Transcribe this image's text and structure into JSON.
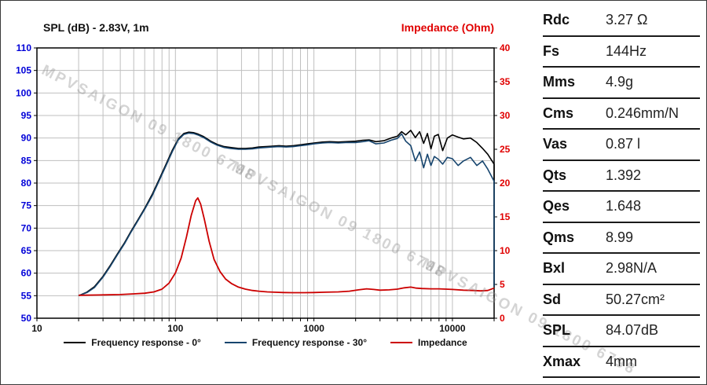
{
  "watermark": {
    "text": "MPVSAIGON 09 1800 6798"
  },
  "specs": {
    "rows": [
      {
        "label": "Rdc",
        "value": "3.27 Ω"
      },
      {
        "label": "Fs",
        "value": "144Hz"
      },
      {
        "label": "Mms",
        "value": "4.9g"
      },
      {
        "label": "Cms",
        "value": "0.246mm/N"
      },
      {
        "label": "Vas",
        "value": "0.87 l"
      },
      {
        "label": "Qts",
        "value": "1.392"
      },
      {
        "label": "Qes",
        "value": "1.648"
      },
      {
        "label": "Qms",
        "value": "8.99"
      },
      {
        "label": "Bxl",
        "value": "2.98N/A"
      },
      {
        "label": "Sd",
        "value": "50.27cm²"
      },
      {
        "label": "SPL",
        "value": "84.07dB"
      },
      {
        "label": "Xmax",
        "value": "4mm"
      }
    ]
  },
  "chart_data": {
    "type": "line",
    "title_left": "SPL (dB) - 2.83V, 1m",
    "title_right": "Impedance (Ohm)",
    "x_axis": {
      "scale": "log",
      "min": 10,
      "max": 20000,
      "tick_labels": [
        10,
        100,
        1000,
        10000
      ]
    },
    "y_left": {
      "label": "SPL (dB)",
      "min": 50,
      "max": 110,
      "step": 5,
      "color": "#0000d8"
    },
    "y_right": {
      "label": "Impedance (Ohm)",
      "min": 0,
      "max": 40,
      "step": 5,
      "color": "#e00000"
    },
    "grid": true,
    "legend_position": "bottom",
    "series": [
      {
        "name": "Frequency response - 0°",
        "axis": "left",
        "color": "#000000",
        "points": [
          [
            20,
            55
          ],
          [
            23,
            55.8
          ],
          [
            26,
            57
          ],
          [
            30,
            59.3
          ],
          [
            34,
            61.8
          ],
          [
            38,
            64.2
          ],
          [
            43,
            66.8
          ],
          [
            48,
            69.4
          ],
          [
            54,
            72
          ],
          [
            60,
            74.4
          ],
          [
            68,
            77.5
          ],
          [
            76,
            80.7
          ],
          [
            85,
            84
          ],
          [
            95,
            87.3
          ],
          [
            105,
            89.8
          ],
          [
            115,
            91
          ],
          [
            125,
            91.3
          ],
          [
            135,
            91.2
          ],
          [
            145,
            90.9
          ],
          [
            160,
            90.3
          ],
          [
            180,
            89.3
          ],
          [
            200,
            88.6
          ],
          [
            225,
            88.1
          ],
          [
            250,
            87.9
          ],
          [
            285,
            87.7
          ],
          [
            320,
            87.7
          ],
          [
            360,
            87.8
          ],
          [
            400,
            88
          ],
          [
            450,
            88.1
          ],
          [
            500,
            88.2
          ],
          [
            560,
            88.3
          ],
          [
            630,
            88.2
          ],
          [
            710,
            88.3
          ],
          [
            800,
            88.5
          ],
          [
            900,
            88.7
          ],
          [
            1000,
            88.9
          ],
          [
            1150,
            89.1
          ],
          [
            1300,
            89.2
          ],
          [
            1500,
            89.1
          ],
          [
            1700,
            89.2
          ],
          [
            2000,
            89.3
          ],
          [
            2250,
            89.5
          ],
          [
            2500,
            89.6
          ],
          [
            2800,
            89.2
          ],
          [
            3200,
            89.4
          ],
          [
            3600,
            90
          ],
          [
            4000,
            90.4
          ],
          [
            4300,
            91.4
          ],
          [
            4600,
            90.7
          ],
          [
            5000,
            91.7
          ],
          [
            5400,
            90.1
          ],
          [
            5800,
            91.4
          ],
          [
            6200,
            88.8
          ],
          [
            6600,
            91
          ],
          [
            7000,
            87.6
          ],
          [
            7400,
            90.4
          ],
          [
            7900,
            90.8
          ],
          [
            8500,
            87.2
          ],
          [
            9200,
            90
          ],
          [
            10000,
            90.7
          ],
          [
            11000,
            90.2
          ],
          [
            12000,
            89.8
          ],
          [
            13500,
            90
          ],
          [
            15000,
            89
          ],
          [
            16500,
            87.7
          ],
          [
            18000,
            86.4
          ],
          [
            20000,
            84.2
          ],
          [
            20000,
            57
          ]
        ]
      },
      {
        "name": "Frequency response - 30°",
        "axis": "left",
        "color": "#17456e",
        "points": [
          [
            20,
            55
          ],
          [
            23,
            55.7
          ],
          [
            26,
            56.8
          ],
          [
            30,
            59.1
          ],
          [
            34,
            61.6
          ],
          [
            38,
            64
          ],
          [
            43,
            66.6
          ],
          [
            48,
            69.2
          ],
          [
            54,
            71.8
          ],
          [
            60,
            74.2
          ],
          [
            68,
            77.2
          ],
          [
            76,
            80.4
          ],
          [
            85,
            83.7
          ],
          [
            95,
            87
          ],
          [
            105,
            89.6
          ],
          [
            115,
            90.8
          ],
          [
            125,
            91.1
          ],
          [
            135,
            91
          ],
          [
            145,
            90.7
          ],
          [
            160,
            90.1
          ],
          [
            180,
            89.1
          ],
          [
            200,
            88.4
          ],
          [
            225,
            87.9
          ],
          [
            250,
            87.7
          ],
          [
            285,
            87.5
          ],
          [
            320,
            87.5
          ],
          [
            360,
            87.6
          ],
          [
            400,
            87.8
          ],
          [
            450,
            87.9
          ],
          [
            500,
            88
          ],
          [
            560,
            88.1
          ],
          [
            630,
            88
          ],
          [
            710,
            88.1
          ],
          [
            800,
            88.3
          ],
          [
            900,
            88.5
          ],
          [
            1000,
            88.7
          ],
          [
            1150,
            88.9
          ],
          [
            1300,
            89
          ],
          [
            1500,
            88.9
          ],
          [
            1700,
            89
          ],
          [
            2000,
            89
          ],
          [
            2250,
            89.2
          ],
          [
            2500,
            89.4
          ],
          [
            2800,
            88.7
          ],
          [
            3200,
            88.9
          ],
          [
            3600,
            89.5
          ],
          [
            4000,
            89.9
          ],
          [
            4300,
            90.9
          ],
          [
            4600,
            89.3
          ],
          [
            5000,
            88.3
          ],
          [
            5400,
            84.9
          ],
          [
            5800,
            86.9
          ],
          [
            6200,
            83.4
          ],
          [
            6600,
            86.4
          ],
          [
            7000,
            83.9
          ],
          [
            7400,
            85.9
          ],
          [
            7900,
            85.3
          ],
          [
            8500,
            84.2
          ],
          [
            9200,
            85.7
          ],
          [
            10000,
            85.4
          ],
          [
            11000,
            83.9
          ],
          [
            12000,
            84.9
          ],
          [
            13500,
            85.7
          ],
          [
            15000,
            83.9
          ],
          [
            16500,
            84.9
          ],
          [
            18000,
            83.1
          ],
          [
            20000,
            80.4
          ],
          [
            20000,
            57
          ]
        ]
      },
      {
        "name": "Impedance",
        "axis": "right",
        "color": "#cc0000",
        "points": [
          [
            20,
            3.4
          ],
          [
            30,
            3.45
          ],
          [
            40,
            3.5
          ],
          [
            50,
            3.6
          ],
          [
            60,
            3.7
          ],
          [
            70,
            3.9
          ],
          [
            80,
            4.3
          ],
          [
            90,
            5.2
          ],
          [
            100,
            6.7
          ],
          [
            110,
            8.9
          ],
          [
            120,
            12
          ],
          [
            130,
            15.2
          ],
          [
            140,
            17.4
          ],
          [
            145,
            17.8
          ],
          [
            152,
            16.9
          ],
          [
            162,
            14.6
          ],
          [
            175,
            11.4
          ],
          [
            190,
            8.7
          ],
          [
            210,
            6.9
          ],
          [
            230,
            5.8
          ],
          [
            255,
            5.1
          ],
          [
            285,
            4.6
          ],
          [
            320,
            4.3
          ],
          [
            360,
            4.1
          ],
          [
            400,
            4
          ],
          [
            460,
            3.9
          ],
          [
            520,
            3.85
          ],
          [
            600,
            3.8
          ],
          [
            700,
            3.78
          ],
          [
            850,
            3.78
          ],
          [
            1000,
            3.8
          ],
          [
            1200,
            3.85
          ],
          [
            1500,
            3.9
          ],
          [
            1800,
            4
          ],
          [
            2100,
            4.2
          ],
          [
            2400,
            4.35
          ],
          [
            2700,
            4.25
          ],
          [
            3000,
            4.15
          ],
          [
            3500,
            4.2
          ],
          [
            4000,
            4.3
          ],
          [
            4500,
            4.5
          ],
          [
            5000,
            4.6
          ],
          [
            5500,
            4.45
          ],
          [
            6000,
            4.4
          ],
          [
            7000,
            4.35
          ],
          [
            8000,
            4.35
          ],
          [
            9000,
            4.3
          ],
          [
            10000,
            4.25
          ],
          [
            12000,
            4.15
          ],
          [
            14000,
            4.1
          ],
          [
            16000,
            4.05
          ],
          [
            18000,
            4.1
          ],
          [
            20000,
            4.45
          ]
        ]
      }
    ]
  }
}
